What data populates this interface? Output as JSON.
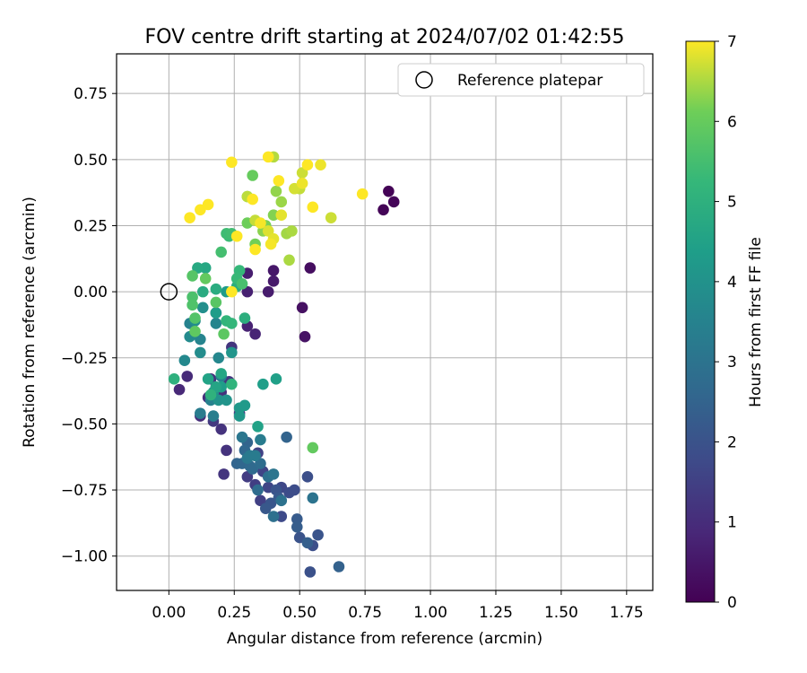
{
  "chart_data": {
    "type": "scatter",
    "title": "FOV centre drift starting at 2024/07/02 01:42:55",
    "xlabel": "Angular distance from reference (arcmin)",
    "ylabel": "Rotation from reference (arcmin)",
    "xlim": [
      -0.2,
      1.85
    ],
    "ylim": [
      -1.13,
      0.9
    ],
    "xticks": [
      0.0,
      0.25,
      0.5,
      0.75,
      1.0,
      1.25,
      1.5,
      1.75
    ],
    "xtick_labels": [
      "0.00",
      "0.25",
      "0.50",
      "0.75",
      "1.00",
      "1.25",
      "1.50",
      "1.75"
    ],
    "yticks": [
      -1.0,
      -0.75,
      -0.5,
      -0.25,
      0.0,
      0.25,
      0.5,
      0.75
    ],
    "ytick_labels": [
      "−1.00",
      "−0.75",
      "−0.50",
      "−0.25",
      "0.00",
      "0.25",
      "0.50",
      "0.75"
    ],
    "grid": true,
    "colormap": "viridis",
    "colorbar": {
      "label": "Hours from first FF file",
      "range": [
        0,
        7
      ],
      "ticks": [
        0,
        1,
        2,
        3,
        4,
        5,
        6,
        7
      ],
      "tick_labels": [
        "0",
        "1",
        "2",
        "3",
        "4",
        "5",
        "6",
        "7"
      ]
    },
    "legend": {
      "placement": "top-right",
      "entries": [
        {
          "label": "Reference platepar",
          "marker": "open-circle"
        }
      ]
    },
    "reference_point": {
      "x": 0.0,
      "y": 0.0
    },
    "points": [
      {
        "x": 0.84,
        "y": 0.38,
        "h": 0.05
      },
      {
        "x": 0.82,
        "y": 0.31,
        "h": 0.08
      },
      {
        "x": 0.86,
        "y": 0.34,
        "h": 0.1
      },
      {
        "x": 0.54,
        "y": 0.09,
        "h": 0.3
      },
      {
        "x": 0.51,
        "y": -0.06,
        "h": 0.35
      },
      {
        "x": 0.52,
        "y": -0.17,
        "h": 0.4
      },
      {
        "x": 0.4,
        "y": 0.08,
        "h": 0.5
      },
      {
        "x": 0.4,
        "y": 0.04,
        "h": 0.55
      },
      {
        "x": 0.38,
        "y": 0.0,
        "h": 0.6
      },
      {
        "x": 0.3,
        "y": 0.07,
        "h": 0.65
      },
      {
        "x": 0.3,
        "y": 0.0,
        "h": 0.7
      },
      {
        "x": 0.3,
        "y": -0.13,
        "h": 0.75
      },
      {
        "x": 0.33,
        "y": -0.16,
        "h": 0.8
      },
      {
        "x": 0.04,
        "y": -0.37,
        "h": 0.9
      },
      {
        "x": 0.07,
        "y": -0.32,
        "h": 0.95
      },
      {
        "x": 0.12,
        "y": -0.47,
        "h": 1.0
      },
      {
        "x": 0.15,
        "y": -0.4,
        "h": 1.05
      },
      {
        "x": 0.16,
        "y": -0.33,
        "h": 1.1
      },
      {
        "x": 0.2,
        "y": -0.38,
        "h": 1.1
      },
      {
        "x": 0.2,
        "y": -0.52,
        "h": 1.15
      },
      {
        "x": 0.22,
        "y": -0.6,
        "h": 1.15
      },
      {
        "x": 0.21,
        "y": -0.69,
        "h": 1.2
      },
      {
        "x": 0.24,
        "y": -0.21,
        "h": 1.2
      },
      {
        "x": 0.23,
        "y": -0.34,
        "h": 1.25
      },
      {
        "x": 0.17,
        "y": -0.49,
        "h": 1.3
      },
      {
        "x": 0.27,
        "y": -0.46,
        "h": 1.3
      },
      {
        "x": 0.18,
        "y": -0.08,
        "h": 1.35
      },
      {
        "x": 0.3,
        "y": -0.7,
        "h": 1.4
      },
      {
        "x": 0.33,
        "y": -0.73,
        "h": 1.45
      },
      {
        "x": 0.35,
        "y": -0.79,
        "h": 1.5
      },
      {
        "x": 0.34,
        "y": -0.61,
        "h": 1.55
      },
      {
        "x": 0.36,
        "y": -0.68,
        "h": 1.6
      },
      {
        "x": 0.38,
        "y": -0.74,
        "h": 1.65
      },
      {
        "x": 0.43,
        "y": -0.74,
        "h": 1.7
      },
      {
        "x": 0.43,
        "y": -0.85,
        "h": 1.75
      },
      {
        "x": 0.46,
        "y": -0.76,
        "h": 1.8
      },
      {
        "x": 0.48,
        "y": -0.75,
        "h": 1.85
      },
      {
        "x": 0.53,
        "y": -0.7,
        "h": 1.9
      },
      {
        "x": 0.55,
        "y": -0.96,
        "h": 1.9
      },
      {
        "x": 0.54,
        "y": -1.06,
        "h": 1.95
      },
      {
        "x": 0.5,
        "y": -0.93,
        "h": 2.0
      },
      {
        "x": 0.57,
        "y": -0.92,
        "h": 2.05
      },
      {
        "x": 0.41,
        "y": -0.75,
        "h": 2.05
      },
      {
        "x": 0.39,
        "y": -0.8,
        "h": 2.1
      },
      {
        "x": 0.37,
        "y": -0.82,
        "h": 2.15
      },
      {
        "x": 0.42,
        "y": -0.78,
        "h": 2.2
      },
      {
        "x": 0.49,
        "y": -0.86,
        "h": 2.25
      },
      {
        "x": 0.49,
        "y": -0.89,
        "h": 2.3
      },
      {
        "x": 0.53,
        "y": -0.95,
        "h": 2.35
      },
      {
        "x": 0.65,
        "y": -1.04,
        "h": 2.45
      },
      {
        "x": 0.45,
        "y": -0.55,
        "h": 2.5
      },
      {
        "x": 0.3,
        "y": -0.57,
        "h": 2.5
      },
      {
        "x": 0.26,
        "y": -0.65,
        "h": 2.55
      },
      {
        "x": 0.28,
        "y": -0.65,
        "h": 2.6
      },
      {
        "x": 0.29,
        "y": -0.6,
        "h": 2.6
      },
      {
        "x": 0.31,
        "y": -0.66,
        "h": 2.65
      },
      {
        "x": 0.32,
        "y": -0.67,
        "h": 2.7
      },
      {
        "x": 0.34,
        "y": -0.75,
        "h": 2.75
      },
      {
        "x": 0.35,
        "y": -0.65,
        "h": 2.8
      },
      {
        "x": 0.38,
        "y": -0.7,
        "h": 2.85
      },
      {
        "x": 0.4,
        "y": -0.85,
        "h": 2.9
      },
      {
        "x": 0.43,
        "y": -0.79,
        "h": 2.95
      },
      {
        "x": 0.55,
        "y": -0.78,
        "h": 3.0
      },
      {
        "x": 0.4,
        "y": -0.69,
        "h": 3.05
      },
      {
        "x": 0.28,
        "y": -0.55,
        "h": 3.1
      },
      {
        "x": 0.3,
        "y": -0.63,
        "h": 3.15
      },
      {
        "x": 0.31,
        "y": -0.62,
        "h": 3.2
      },
      {
        "x": 0.33,
        "y": -0.62,
        "h": 3.25
      },
      {
        "x": 0.35,
        "y": -0.56,
        "h": 3.3
      },
      {
        "x": 0.12,
        "y": -0.46,
        "h": 3.3
      },
      {
        "x": 0.17,
        "y": -0.47,
        "h": 3.35
      },
      {
        "x": 0.2,
        "y": -0.32,
        "h": 3.4
      },
      {
        "x": 0.16,
        "y": -0.41,
        "h": 3.45
      },
      {
        "x": 0.08,
        "y": -0.12,
        "h": 3.5
      },
      {
        "x": 0.12,
        "y": -0.18,
        "h": 3.55
      },
      {
        "x": 0.18,
        "y": -0.12,
        "h": 3.6
      },
      {
        "x": 0.19,
        "y": -0.25,
        "h": 3.65
      },
      {
        "x": 0.06,
        "y": -0.26,
        "h": 3.7
      },
      {
        "x": 0.08,
        "y": -0.17,
        "h": 3.75
      },
      {
        "x": 0.12,
        "y": -0.23,
        "h": 3.8
      },
      {
        "x": 0.1,
        "y": -0.11,
        "h": 3.85
      },
      {
        "x": 0.13,
        "y": -0.06,
        "h": 3.9
      },
      {
        "x": 0.17,
        "y": -0.38,
        "h": 3.95
      },
      {
        "x": 0.19,
        "y": -0.41,
        "h": 4.0
      },
      {
        "x": 0.22,
        "y": -0.41,
        "h": 4.05
      },
      {
        "x": 0.24,
        "y": -0.23,
        "h": 4.1
      },
      {
        "x": 0.27,
        "y": -0.47,
        "h": 4.15
      },
      {
        "x": 0.27,
        "y": -0.44,
        "h": 4.2
      },
      {
        "x": 0.29,
        "y": -0.43,
        "h": 4.25
      },
      {
        "x": 0.22,
        "y": 0.0,
        "h": 4.3
      },
      {
        "x": 0.18,
        "y": -0.08,
        "h": 4.35
      },
      {
        "x": 0.2,
        "y": -0.36,
        "h": 4.35
      },
      {
        "x": 0.36,
        "y": -0.35,
        "h": 4.4
      },
      {
        "x": 0.41,
        "y": -0.33,
        "h": 4.45
      },
      {
        "x": 0.34,
        "y": -0.51,
        "h": 4.5
      },
      {
        "x": 0.15,
        "y": -0.33,
        "h": 4.55
      },
      {
        "x": 0.18,
        "y": -0.36,
        "h": 4.6
      },
      {
        "x": 0.2,
        "y": -0.31,
        "h": 4.65
      },
      {
        "x": 0.14,
        "y": 0.09,
        "h": 4.7
      },
      {
        "x": 0.11,
        "y": 0.09,
        "h": 4.75
      },
      {
        "x": 0.13,
        "y": 0.0,
        "h": 4.8
      },
      {
        "x": 0.18,
        "y": 0.01,
        "h": 4.85
      },
      {
        "x": 0.26,
        "y": 0.02,
        "h": 4.9
      },
      {
        "x": 0.29,
        "y": -0.1,
        "h": 4.95
      },
      {
        "x": 0.02,
        "y": -0.33,
        "h": 5.0
      },
      {
        "x": 0.16,
        "y": -0.39,
        "h": 5.05
      },
      {
        "x": 0.24,
        "y": -0.35,
        "h": 5.1
      },
      {
        "x": 0.22,
        "y": -0.11,
        "h": 5.15
      },
      {
        "x": 0.24,
        "y": -0.12,
        "h": 5.2
      },
      {
        "x": 0.27,
        "y": 0.08,
        "h": 5.25
      },
      {
        "x": 0.26,
        "y": 0.05,
        "h": 5.3
      },
      {
        "x": 0.23,
        "y": 0.21,
        "h": 5.35
      },
      {
        "x": 0.22,
        "y": 0.22,
        "h": 5.4
      },
      {
        "x": 0.24,
        "y": 0.22,
        "h": 5.45
      },
      {
        "x": 0.2,
        "y": 0.15,
        "h": 5.5
      },
      {
        "x": 0.28,
        "y": 0.03,
        "h": 5.55
      },
      {
        "x": 0.09,
        "y": -0.02,
        "h": 5.6
      },
      {
        "x": 0.09,
        "y": -0.05,
        "h": 5.65
      },
      {
        "x": 0.1,
        "y": -0.1,
        "h": 5.7
      },
      {
        "x": 0.09,
        "y": 0.06,
        "h": 5.75
      },
      {
        "x": 0.18,
        "y": -0.04,
        "h": 5.8
      },
      {
        "x": 0.21,
        "y": -0.16,
        "h": 5.85
      },
      {
        "x": 0.1,
        "y": -0.15,
        "h": 5.9
      },
      {
        "x": 0.14,
        "y": 0.05,
        "h": 5.95
      },
      {
        "x": 0.55,
        "y": -0.59,
        "h": 5.95
      },
      {
        "x": 0.32,
        "y": 0.44,
        "h": 6.0
      },
      {
        "x": 0.3,
        "y": 0.36,
        "h": 6.05
      },
      {
        "x": 0.3,
        "y": 0.26,
        "h": 6.1
      },
      {
        "x": 0.33,
        "y": 0.18,
        "h": 6.15
      },
      {
        "x": 0.37,
        "y": 0.25,
        "h": 6.2
      },
      {
        "x": 0.4,
        "y": 0.29,
        "h": 6.25
      },
      {
        "x": 0.36,
        "y": 0.23,
        "h": 6.3
      },
      {
        "x": 0.41,
        "y": 0.38,
        "h": 6.35
      },
      {
        "x": 0.43,
        "y": 0.34,
        "h": 6.4
      },
      {
        "x": 0.45,
        "y": 0.22,
        "h": 6.45
      },
      {
        "x": 0.47,
        "y": 0.23,
        "h": 6.5
      },
      {
        "x": 0.46,
        "y": 0.12,
        "h": 6.5
      },
      {
        "x": 0.4,
        "y": 0.51,
        "h": 6.55
      },
      {
        "x": 0.3,
        "y": 0.36,
        "h": 6.6
      },
      {
        "x": 0.33,
        "y": 0.27,
        "h": 6.65
      },
      {
        "x": 0.5,
        "y": 0.39,
        "h": 6.65
      },
      {
        "x": 0.51,
        "y": 0.45,
        "h": 6.7
      },
      {
        "x": 0.62,
        "y": 0.28,
        "h": 6.7
      },
      {
        "x": 0.48,
        "y": 0.39,
        "h": 6.75
      },
      {
        "x": 0.38,
        "y": 0.23,
        "h": 6.8
      },
      {
        "x": 0.4,
        "y": 0.2,
        "h": 6.85
      },
      {
        "x": 0.43,
        "y": 0.29,
        "h": 6.85
      },
      {
        "x": 0.58,
        "y": 0.48,
        "h": 6.9
      },
      {
        "x": 0.51,
        "y": 0.41,
        "h": 6.9
      },
      {
        "x": 0.35,
        "y": 0.26,
        "h": 6.95
      },
      {
        "x": 0.39,
        "y": 0.18,
        "h": 6.95
      },
      {
        "x": 0.53,
        "y": 0.48,
        "h": 7.0
      },
      {
        "x": 0.42,
        "y": 0.42,
        "h": 7.0
      },
      {
        "x": 0.74,
        "y": 0.37,
        "h": 7.0
      },
      {
        "x": 0.55,
        "y": 0.32,
        "h": 7.0
      },
      {
        "x": 0.38,
        "y": 0.51,
        "h": 7.0
      },
      {
        "x": 0.24,
        "y": 0.49,
        "h": 7.0
      },
      {
        "x": 0.32,
        "y": 0.35,
        "h": 7.0
      },
      {
        "x": 0.26,
        "y": 0.21,
        "h": 7.0
      },
      {
        "x": 0.08,
        "y": 0.28,
        "h": 7.0
      },
      {
        "x": 0.12,
        "y": 0.31,
        "h": 7.0
      },
      {
        "x": 0.15,
        "y": 0.33,
        "h": 7.0
      },
      {
        "x": 0.33,
        "y": 0.16,
        "h": 7.0
      },
      {
        "x": 0.24,
        "y": 0.0,
        "h": 7.0
      }
    ]
  }
}
